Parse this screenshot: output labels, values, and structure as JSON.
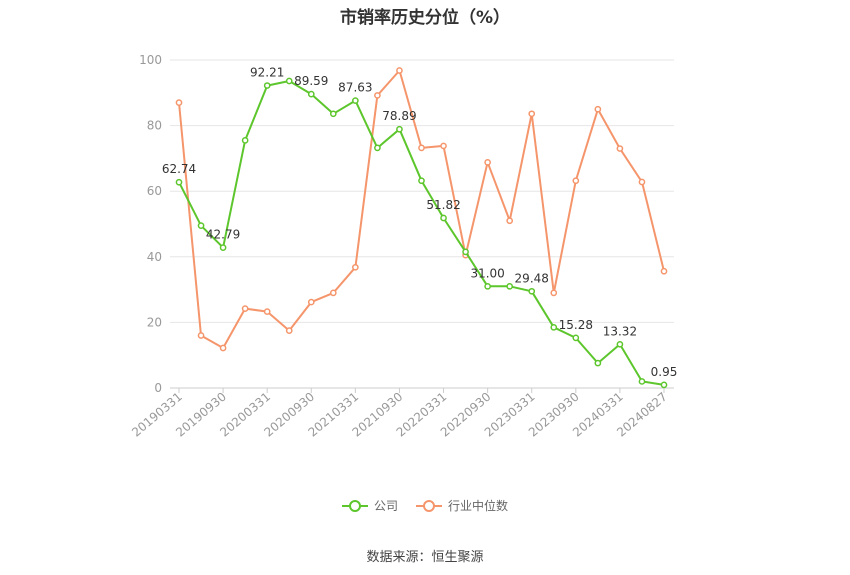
{
  "chart_data": {
    "type": "line",
    "title": "市销率历史分位（%）",
    "source": "数据来源：恒生聚源",
    "ylim": [
      0,
      100
    ],
    "yticks": [
      0,
      20,
      40,
      60,
      80,
      100
    ],
    "grid": true,
    "legend_position": "bottom",
    "tick_labels": [
      "20190331",
      "20190930",
      "20200331",
      "20200930",
      "20210331",
      "20210930",
      "20220331",
      "20220930",
      "20230331",
      "20230930",
      "20240331",
      "20240827"
    ],
    "tick_positions": [
      0,
      2,
      4,
      6,
      8,
      10,
      12,
      14,
      16,
      18,
      20,
      22
    ],
    "series": [
      {
        "name": "公司",
        "color": "#5cc62c",
        "values": [
          62.74,
          49.5,
          42.79,
          75.5,
          92.21,
          93.6,
          89.59,
          83.6,
          87.63,
          73.2,
          78.89,
          63.2,
          51.82,
          41.5,
          31.0,
          31.0,
          29.48,
          18.5,
          15.28,
          7.6,
          13.32,
          2.0,
          0.95
        ],
        "labels": {
          "0": "62.74",
          "2": "42.79",
          "4": "92.21",
          "6": "89.59",
          "8": "87.63",
          "10": "78.89",
          "12": "51.82",
          "14": "31.00",
          "16": "29.48",
          "18": "15.28",
          "20": "13.32",
          "22": "0.95"
        }
      },
      {
        "name": "行业中位数",
        "color": "#f5956b",
        "values": [
          87.0,
          16.0,
          12.2,
          24.2,
          23.3,
          17.5,
          26.2,
          29.0,
          36.8,
          89.2,
          96.8,
          73.2,
          73.8,
          40.5,
          68.8,
          51.0,
          83.6,
          29.0,
          63.2,
          85.0,
          73.0,
          62.8,
          35.6
        ]
      }
    ]
  }
}
